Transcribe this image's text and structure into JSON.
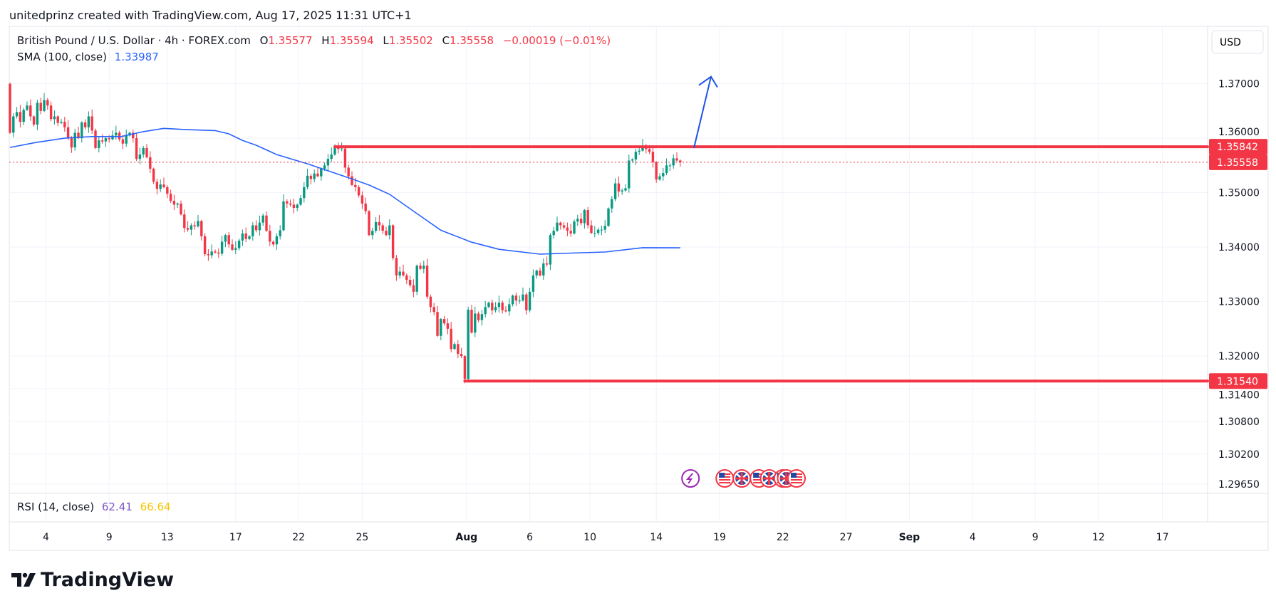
{
  "header": {
    "credit": "unitedprinz created with TradingView.com, Aug 17, 2025 11:31 UTC+1"
  },
  "legend": {
    "symbol": "British Pound / U.S. Dollar · 4h · FOREX.com",
    "o_label": "O",
    "o_value": "1.35577",
    "h_label": "H",
    "h_value": "1.35594",
    "l_label": "L",
    "l_value": "1.35502",
    "c_label": "C",
    "c_value": "1.35558",
    "change": "−0.00019 (−0.01%)",
    "sma_label": "SMA (100, close)",
    "sma_value": "1.33987",
    "rsi_label": "RSI (14, close)",
    "rsi_value": "62.41",
    "rsi_ma_value": "66.64"
  },
  "currency_button": "USD",
  "logo_text": "TradingView",
  "colors": {
    "up": "#089981",
    "down": "#f23645",
    "sma": "#2962ff",
    "level": "#f23645",
    "arrow": "#1e53e5",
    "rsi": "#7e57c2",
    "rsi_ma": "#f7c600"
  },
  "chart_data": {
    "type": "candlestick",
    "title": "British Pound / U.S. Dollar · 4h · FOREX.com",
    "first_open": 1.37,
    "closes": [
      1.361,
      1.364,
      1.3648,
      1.363,
      1.3652,
      1.366,
      1.364,
      1.3625,
      1.3665,
      1.365,
      1.367,
      1.366,
      1.3635,
      1.364,
      1.3628,
      1.363,
      1.362,
      1.36,
      1.3583,
      1.361,
      1.36,
      1.3629,
      1.362,
      1.364,
      1.3614,
      1.3582,
      1.3596,
      1.3594,
      1.36,
      1.3598,
      1.3605,
      1.361,
      1.3598,
      1.359,
      1.3605,
      1.361,
      1.36,
      1.3562,
      1.357,
      1.3582,
      1.3565,
      1.3544,
      1.352,
      1.3507,
      1.3515,
      1.351,
      1.3498,
      1.3485,
      1.3478,
      1.348,
      1.346,
      1.3435,
      1.3432,
      1.344,
      1.3438,
      1.3448,
      1.342,
      1.3387,
      1.3385,
      1.3392,
      1.339,
      1.3388,
      1.341,
      1.3422,
      1.3405,
      1.3395,
      1.3398,
      1.3412,
      1.3425,
      1.3415,
      1.342,
      1.344,
      1.3431,
      1.3445,
      1.3458,
      1.343,
      1.341,
      1.3405,
      1.342,
      1.3431,
      1.3484,
      1.348,
      1.3478,
      1.3472,
      1.3478,
      1.349,
      1.351,
      1.3531,
      1.3525,
      1.3535,
      1.353,
      1.3544,
      1.355,
      1.3562,
      1.357,
      1.3585,
      1.358,
      1.3581,
      1.3546,
      1.353,
      1.3514,
      1.351,
      1.3495,
      1.348,
      1.3466,
      1.3422,
      1.343,
      1.3446,
      1.344,
      1.343,
      1.3422,
      1.344,
      1.338,
      1.3348,
      1.3355,
      1.3348,
      1.334,
      1.333,
      1.3318,
      1.3366,
      1.336,
      1.3366,
      1.3309,
      1.329,
      1.3281,
      1.3237,
      1.3268,
      1.326,
      1.325,
      1.3213,
      1.3222,
      1.3204,
      1.32,
      1.3158,
      1.3285,
      1.3243,
      1.3278,
      1.3266,
      1.3277,
      1.329,
      1.3298,
      1.3284,
      1.329,
      1.3298,
      1.3284,
      1.3282,
      1.3295,
      1.3311,
      1.3302,
      1.3302,
      1.3313,
      1.3284,
      1.3318,
      1.3348,
      1.3357,
      1.3348,
      1.337,
      1.3368,
      1.3422,
      1.343,
      1.3445,
      1.344,
      1.3436,
      1.343,
      1.3425,
      1.3447,
      1.3452,
      1.3444,
      1.3468,
      1.344,
      1.3426,
      1.3426,
      1.3432,
      1.3432,
      1.3439,
      1.3471,
      1.3488,
      1.3517,
      1.3502,
      1.3504,
      1.3508,
      1.3559,
      1.3561,
      1.3575,
      1.3577,
      1.3586,
      1.358,
      1.3575,
      1.3556,
      1.3524,
      1.353,
      1.3536,
      1.355,
      1.355,
      1.3563,
      1.3559,
      1.35558
    ],
    "sma_100": [
      [
        0,
        1.3583
      ],
      [
        7.5,
        1.3592
      ],
      [
        16,
        1.36
      ],
      [
        24,
        1.3603
      ],
      [
        32.5,
        1.3603
      ],
      [
        39,
        1.3612
      ],
      [
        45,
        1.3618
      ],
      [
        51,
        1.3616
      ],
      [
        60,
        1.3614
      ],
      [
        64,
        1.3608
      ],
      [
        68,
        1.3596
      ],
      [
        72,
        1.3587
      ],
      [
        78,
        1.357
      ],
      [
        87,
        1.3553
      ],
      [
        95,
        1.3536
      ],
      [
        101,
        1.3523
      ],
      [
        105,
        1.3514
      ],
      [
        111,
        1.3497
      ],
      [
        118,
        1.3466
      ],
      [
        126,
        1.3431
      ],
      [
        135,
        1.3409
      ],
      [
        143,
        1.3396
      ],
      [
        155,
        1.3387
      ],
      [
        164,
        1.3389
      ],
      [
        174,
        1.3391
      ],
      [
        185,
        1.3399
      ],
      [
        196,
        1.33987
      ]
    ],
    "levels": [
      {
        "price": 1.35842,
        "label": "1.35842",
        "from_index": 95
      },
      {
        "price": 1.3154,
        "label": "1.31540",
        "from_index": 133
      }
    ],
    "last_price": {
      "price": 1.35558,
      "label": "1.35558"
    },
    "y_ticks": [
      {
        "v": 1.37,
        "label": "1.37000"
      },
      {
        "v": 1.36,
        "label": "1.36000"
      },
      {
        "v": 1.35,
        "label": "1.35000"
      },
      {
        "v": 1.34,
        "label": "1.34000"
      },
      {
        "v": 1.33,
        "label": "1.33000"
      },
      {
        "v": 1.32,
        "label": "1.32000"
      },
      {
        "v": 1.314,
        "label": "1.31400"
      },
      {
        "v": 1.308,
        "label": "1.30800"
      },
      {
        "v": 1.302,
        "label": "1.30200"
      },
      {
        "v": 1.2965,
        "label": "1.29650"
      }
    ],
    "x_ticks": [
      {
        "i": 10.5,
        "label": "4"
      },
      {
        "i": 29,
        "label": "9"
      },
      {
        "i": 46,
        "label": "13"
      },
      {
        "i": 66,
        "label": "17"
      },
      {
        "i": 84.4,
        "label": "22"
      },
      {
        "i": 103,
        "label": "25"
      },
      {
        "i": 133.5,
        "label": "Aug",
        "bold": true
      },
      {
        "i": 152,
        "label": "6"
      },
      {
        "i": 169.6,
        "label": "10"
      },
      {
        "i": 189,
        "label": "14"
      },
      {
        "i": 207.5,
        "label": "19"
      },
      {
        "i": 226,
        "label": "22"
      },
      {
        "i": 244.5,
        "label": "27"
      },
      {
        "i": 263,
        "label": "Sep",
        "bold": true
      },
      {
        "i": 281.5,
        "label": "4"
      },
      {
        "i": 299.8,
        "label": "9"
      },
      {
        "i": 318.3,
        "label": "12"
      },
      {
        "i": 337,
        "label": "17"
      }
    ],
    "projection_arrow": {
      "from": [
        200,
        1.3582
      ],
      "to": [
        205,
        1.3713
      ],
      "direction": "up"
    },
    "events": [
      {
        "type": "lightning",
        "i": 199
      },
      {
        "type": "us-flag",
        "i": 209
      },
      {
        "type": "uk-flag",
        "i": 214
      },
      {
        "type": "us-flag",
        "i": 219
      },
      {
        "type": "uk-flag",
        "i": 222
      },
      {
        "type": "us-flag",
        "i": 226
      },
      {
        "type": "uk-flag",
        "i": 227
      },
      {
        "type": "us-flag",
        "i": 230
      }
    ]
  }
}
